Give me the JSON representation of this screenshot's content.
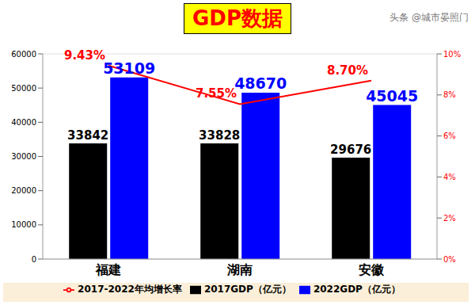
{
  "chart_data": {
    "type": "bar",
    "title": "GDP数据",
    "watermark": "头条 @城市晏照门",
    "categories": [
      "福建",
      "湖南",
      "安徽"
    ],
    "series": [
      {
        "name": "2017GDP（亿元）",
        "color": "#000000",
        "type": "bar",
        "values": [
          33842,
          33828,
          29676
        ]
      },
      {
        "name": "2022GDP（亿元）",
        "color": "#0000ff",
        "type": "bar",
        "values": [
          53109,
          48670,
          45045
        ]
      },
      {
        "name": "2017-2022年均增长率",
        "color": "#ff0000",
        "type": "line",
        "axis": "y2",
        "marker": "none",
        "values": [
          9.43,
          7.55,
          8.7
        ],
        "value_labels": [
          "9.43%",
          "7.55%",
          "8.70%"
        ]
      }
    ],
    "ylim": [
      0,
      60000
    ],
    "yticks": [
      0,
      10000,
      20000,
      30000,
      40000,
      50000,
      60000
    ],
    "y2lim": [
      0,
      10
    ],
    "y2ticks": [
      {
        "value": 0,
        "label": "0%"
      },
      {
        "value": 2,
        "label": "2%"
      },
      {
        "value": 4,
        "label": "4%"
      },
      {
        "value": 6,
        "label": "6%"
      },
      {
        "value": 8,
        "label": "8%"
      },
      {
        "value": 10,
        "label": "10%"
      }
    ],
    "grid": true,
    "legend": "bottom",
    "data_labels": true
  }
}
